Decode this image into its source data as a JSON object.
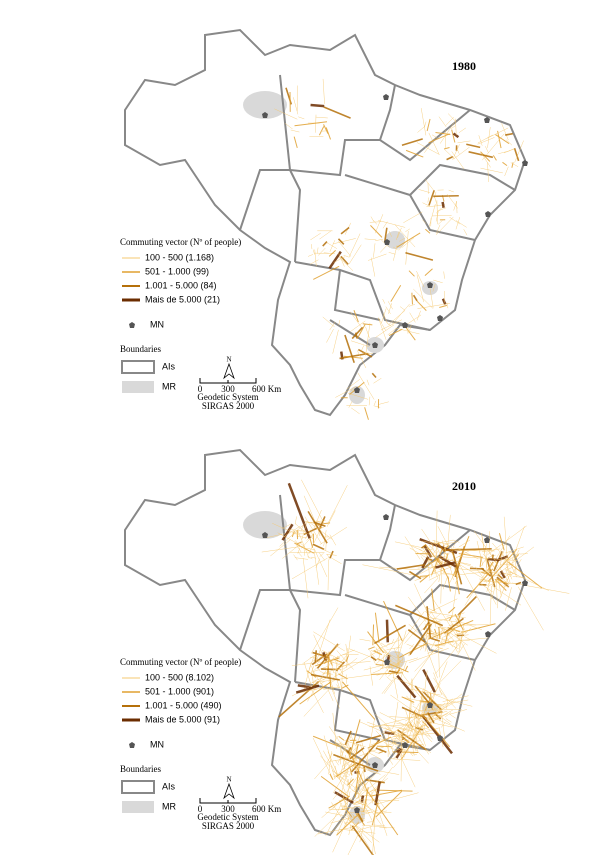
{
  "maps": [
    {
      "year": "1980",
      "legend": {
        "title": "Commuting vector (Nº of people)",
        "items": [
          "100 - 500 (1.168)",
          "501 - 1.000 (99)",
          "1.001 - 5.000 (84)",
          "Mais de 5.000 (21)"
        ]
      },
      "mn": "MN",
      "boundaries": {
        "title": "Boundaries",
        "items": [
          "AIs",
          "MR"
        ]
      },
      "scale": {
        "north": "N",
        "ticks": [
          "0",
          "300",
          "600 Km"
        ],
        "system": [
          "Geodetic System",
          "SIRGAS 2000"
        ]
      }
    },
    {
      "year": "2010",
      "legend": {
        "title": "Commuting vector (Nº of people)",
        "items": [
          "100 - 500 (8.102)",
          "501 - 1.000 (901)",
          "1.001 - 5.000 (490)",
          "Mais de 5.000 (91)"
        ]
      },
      "mn": "MN",
      "boundaries": {
        "title": "Boundaries",
        "items": [
          "AIs",
          "MR"
        ]
      },
      "scale": {
        "north": "N",
        "ticks": [
          "0",
          "300",
          "600 Km"
        ],
        "system": [
          "Geodetic System",
          "SIRGAS 2000"
        ]
      }
    }
  ]
}
